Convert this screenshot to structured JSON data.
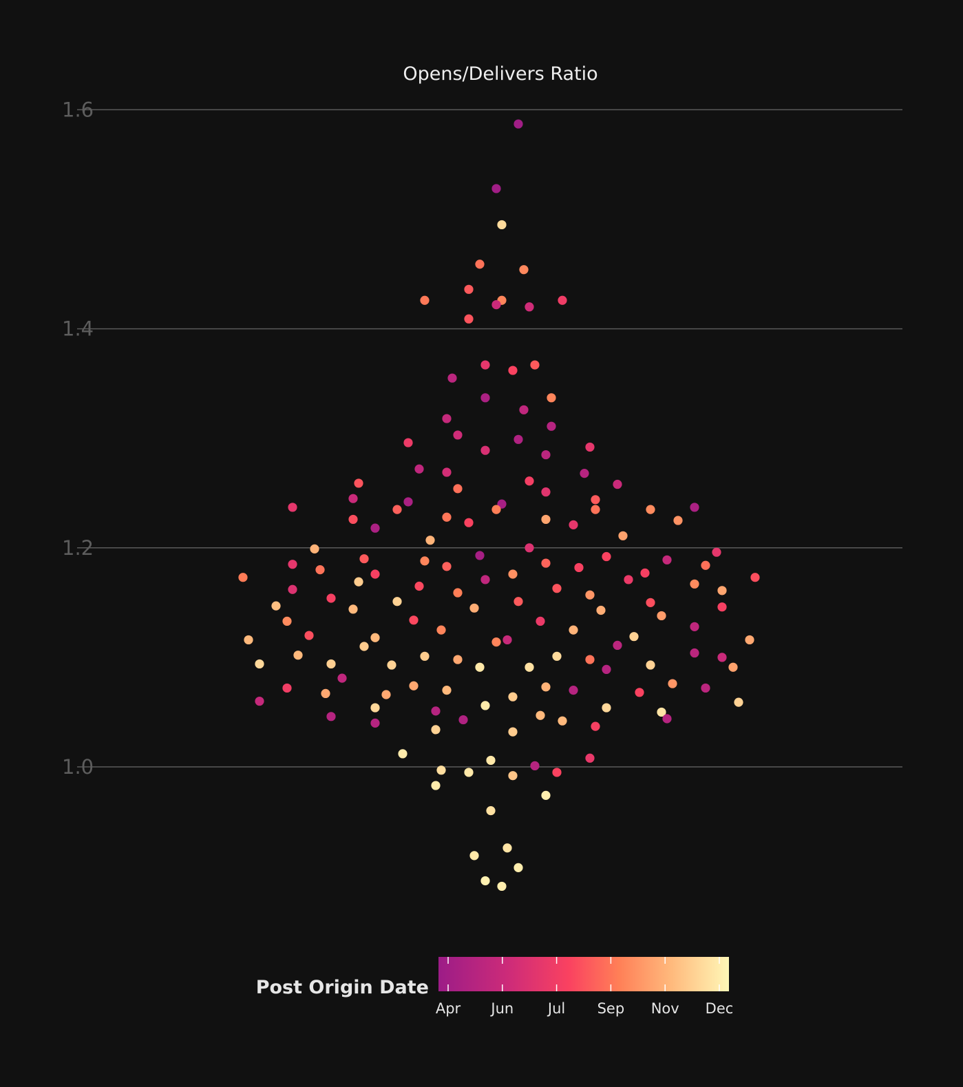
{
  "chart_data": {
    "type": "scatter",
    "title": "Opens/Delivers Ratio",
    "ylabel": "",
    "xlabel": "",
    "yticks": [
      1.0,
      1.2,
      1.4,
      1.6
    ],
    "ylim": [
      0.87,
      1.632
    ],
    "grid": true,
    "colorbar": {
      "title": "Post Origin Date",
      "ticks": [
        "Apr",
        "Jun",
        "Jul",
        "Sep",
        "Nov",
        "Dec"
      ],
      "colormap": [
        "#9c1c87",
        "#cf2c78",
        "#fa4260",
        "#ff7f57",
        "#ffb97c",
        "#fff7b7"
      ],
      "placement": "bottom-center"
    },
    "points": [
      {
        "y": 1.587,
        "c": 0.02,
        "s": 0.02
      },
      {
        "y": 1.528,
        "c": 0.02,
        "s": -0.02
      },
      {
        "y": 1.495,
        "c": 0.91,
        "s": -0.01
      },
      {
        "y": 1.459,
        "c": 0.56,
        "s": -0.05
      },
      {
        "y": 1.454,
        "c": 0.63,
        "s": 0.03
      },
      {
        "y": 1.436,
        "c": 0.48,
        "s": -0.07
      },
      {
        "y": 1.426,
        "c": 0.58,
        "s": -0.15
      },
      {
        "y": 1.426,
        "c": 0.62,
        "s": -0.01
      },
      {
        "y": 1.426,
        "c": 0.35,
        "s": 0.1
      },
      {
        "y": 1.422,
        "c": 0.18,
        "s": -0.02
      },
      {
        "y": 1.42,
        "c": 0.2,
        "s": 0.04
      },
      {
        "y": 1.409,
        "c": 0.46,
        "s": -0.07
      },
      {
        "y": 1.367,
        "c": 0.3,
        "s": -0.04
      },
      {
        "y": 1.367,
        "c": 0.48,
        "s": 0.05
      },
      {
        "y": 1.362,
        "c": 0.4,
        "s": 0.01
      },
      {
        "y": 1.355,
        "c": 0.12,
        "s": -0.1
      },
      {
        "y": 1.337,
        "c": 0.62,
        "s": 0.08
      },
      {
        "y": 1.337,
        "c": 0.06,
        "s": -0.04
      },
      {
        "y": 1.326,
        "c": 0.14,
        "s": 0.03
      },
      {
        "y": 1.318,
        "c": 0.16,
        "s": -0.11
      },
      {
        "y": 1.311,
        "c": 0.1,
        "s": 0.08
      },
      {
        "y": 1.303,
        "c": 0.2,
        "s": -0.09
      },
      {
        "y": 1.299,
        "c": 0.08,
        "s": 0.02
      },
      {
        "y": 1.296,
        "c": 0.34,
        "s": -0.18
      },
      {
        "y": 1.292,
        "c": 0.3,
        "s": 0.15
      },
      {
        "y": 1.289,
        "c": 0.24,
        "s": -0.04
      },
      {
        "y": 1.285,
        "c": 0.12,
        "s": 0.07
      },
      {
        "y": 1.272,
        "c": 0.14,
        "s": -0.16
      },
      {
        "y": 1.269,
        "c": 0.22,
        "s": -0.11
      },
      {
        "y": 1.268,
        "c": 0.1,
        "s": 0.14
      },
      {
        "y": 1.261,
        "c": 0.37,
        "s": 0.04
      },
      {
        "y": 1.259,
        "c": 0.46,
        "s": -0.27
      },
      {
        "y": 1.258,
        "c": 0.18,
        "s": 0.2
      },
      {
        "y": 1.254,
        "c": 0.55,
        "s": -0.09
      },
      {
        "y": 1.251,
        "c": 0.28,
        "s": 0.07
      },
      {
        "y": 1.245,
        "c": 0.18,
        "s": -0.28
      },
      {
        "y": 1.244,
        "c": 0.48,
        "s": 0.16
      },
      {
        "y": 1.242,
        "c": 0.06,
        "s": -0.18
      },
      {
        "y": 1.24,
        "c": 0.04,
        "s": -0.01
      },
      {
        "y": 1.237,
        "c": 0.3,
        "s": -0.39
      },
      {
        "y": 1.237,
        "c": 0.06,
        "s": 0.34
      },
      {
        "y": 1.235,
        "c": 0.5,
        "s": -0.2
      },
      {
        "y": 1.235,
        "c": 0.6,
        "s": -0.02
      },
      {
        "y": 1.235,
        "c": 0.56,
        "s": 0.16
      },
      {
        "y": 1.235,
        "c": 0.64,
        "s": 0.26
      },
      {
        "y": 1.228,
        "c": 0.57,
        "s": -0.11
      },
      {
        "y": 1.226,
        "c": 0.44,
        "s": -0.28
      },
      {
        "y": 1.226,
        "c": 0.73,
        "s": 0.07
      },
      {
        "y": 1.225,
        "c": 0.67,
        "s": 0.31
      },
      {
        "y": 1.223,
        "c": 0.4,
        "s": -0.07
      },
      {
        "y": 1.221,
        "c": 0.3,
        "s": 0.12
      },
      {
        "y": 1.218,
        "c": 0.06,
        "s": -0.24
      },
      {
        "y": 1.211,
        "c": 0.72,
        "s": 0.21
      },
      {
        "y": 1.207,
        "c": 0.78,
        "s": -0.14
      },
      {
        "y": 1.199,
        "c": 0.78,
        "s": -0.35
      },
      {
        "y": 1.2,
        "c": 0.26,
        "s": 0.04
      },
      {
        "y": 1.196,
        "c": 0.3,
        "s": 0.38
      },
      {
        "y": 1.193,
        "c": 0.04,
        "s": -0.05
      },
      {
        "y": 1.192,
        "c": 0.4,
        "s": 0.18
      },
      {
        "y": 1.19,
        "c": 0.48,
        "s": -0.26
      },
      {
        "y": 1.189,
        "c": 0.16,
        "s": 0.29
      },
      {
        "y": 1.188,
        "c": 0.62,
        "s": -0.15
      },
      {
        "y": 1.186,
        "c": 0.51,
        "s": 0.07
      },
      {
        "y": 1.185,
        "c": 0.3,
        "s": -0.39
      },
      {
        "y": 1.184,
        "c": 0.55,
        "s": 0.36
      },
      {
        "y": 1.183,
        "c": 0.5,
        "s": -0.11
      },
      {
        "y": 1.182,
        "c": 0.39,
        "s": 0.13
      },
      {
        "y": 1.18,
        "c": 0.56,
        "s": -0.34
      },
      {
        "y": 1.177,
        "c": 0.38,
        "s": 0.25
      },
      {
        "y": 1.176,
        "c": 0.38,
        "s": -0.24
      },
      {
        "y": 1.176,
        "c": 0.66,
        "s": 0.01
      },
      {
        "y": 1.173,
        "c": 0.59,
        "s": -0.48
      },
      {
        "y": 1.173,
        "c": 0.44,
        "s": 0.45
      },
      {
        "y": 1.171,
        "c": 0.14,
        "s": -0.04
      },
      {
        "y": 1.171,
        "c": 0.33,
        "s": 0.22
      },
      {
        "y": 1.169,
        "c": 0.86,
        "s": -0.27
      },
      {
        "y": 1.167,
        "c": 0.64,
        "s": 0.34
      },
      {
        "y": 1.165,
        "c": 0.42,
        "s": -0.16
      },
      {
        "y": 1.163,
        "c": 0.46,
        "s": 0.09
      },
      {
        "y": 1.162,
        "c": 0.26,
        "s": -0.39
      },
      {
        "y": 1.161,
        "c": 0.73,
        "s": 0.39
      },
      {
        "y": 1.159,
        "c": 0.6,
        "s": -0.09
      },
      {
        "y": 1.157,
        "c": 0.68,
        "s": 0.15
      },
      {
        "y": 1.154,
        "c": 0.38,
        "s": -0.32
      },
      {
        "y": 1.151,
        "c": 0.88,
        "s": -0.2
      },
      {
        "y": 1.151,
        "c": 0.48,
        "s": 0.02
      },
      {
        "y": 1.15,
        "c": 0.44,
        "s": 0.26
      },
      {
        "y": 1.147,
        "c": 0.82,
        "s": -0.42
      },
      {
        "y": 1.146,
        "c": 0.38,
        "s": 0.39
      },
      {
        "y": 1.145,
        "c": 0.76,
        "s": -0.06
      },
      {
        "y": 1.144,
        "c": 0.8,
        "s": -0.28
      },
      {
        "y": 1.143,
        "c": 0.76,
        "s": 0.17
      },
      {
        "y": 1.138,
        "c": 0.7,
        "s": 0.28
      },
      {
        "y": 1.134,
        "c": 0.42,
        "s": -0.17
      },
      {
        "y": 1.133,
        "c": 0.64,
        "s": -0.4
      },
      {
        "y": 1.133,
        "c": 0.33,
        "s": 0.06
      },
      {
        "y": 1.128,
        "c": 0.14,
        "s": 0.34
      },
      {
        "y": 1.125,
        "c": 0.62,
        "s": -0.12
      },
      {
        "y": 1.125,
        "c": 0.78,
        "s": 0.12
      },
      {
        "y": 1.12,
        "c": 0.44,
        "s": -0.36
      },
      {
        "y": 1.119,
        "c": 0.88,
        "s": 0.23
      },
      {
        "y": 1.118,
        "c": 0.8,
        "s": -0.24
      },
      {
        "y": 1.116,
        "c": 0.8,
        "s": -0.47
      },
      {
        "y": 1.116,
        "c": 0.17,
        "s": 0.0
      },
      {
        "y": 1.116,
        "c": 0.74,
        "s": 0.44
      },
      {
        "y": 1.114,
        "c": 0.62,
        "s": -0.02
      },
      {
        "y": 1.11,
        "c": 0.86,
        "s": -0.26
      },
      {
        "y": 1.111,
        "c": 0.12,
        "s": 0.2
      },
      {
        "y": 1.104,
        "c": 0.12,
        "s": 0.34
      },
      {
        "y": 1.102,
        "c": 0.8,
        "s": -0.38
      },
      {
        "y": 1.101,
        "c": 0.86,
        "s": -0.15
      },
      {
        "y": 1.101,
        "c": 0.91,
        "s": 0.09
      },
      {
        "y": 1.1,
        "c": 0.18,
        "s": 0.39
      },
      {
        "y": 1.098,
        "c": 0.74,
        "s": -0.09
      },
      {
        "y": 1.098,
        "c": 0.56,
        "s": 0.15
      },
      {
        "y": 1.094,
        "c": 0.9,
        "s": -0.45
      },
      {
        "y": 1.094,
        "c": 0.87,
        "s": -0.32
      },
      {
        "y": 1.093,
        "c": 0.88,
        "s": -0.21
      },
      {
        "y": 1.093,
        "c": 0.88,
        "s": 0.26
      },
      {
        "y": 1.091,
        "c": 0.72,
        "s": 0.41
      },
      {
        "y": 1.091,
        "c": 0.95,
        "s": -0.05
      },
      {
        "y": 1.091,
        "c": 0.93,
        "s": 0.04
      },
      {
        "y": 1.089,
        "c": 0.1,
        "s": 0.18
      },
      {
        "y": 1.081,
        "c": 0.14,
        "s": -0.3
      },
      {
        "y": 1.076,
        "c": 0.68,
        "s": 0.3
      },
      {
        "y": 1.074,
        "c": 0.74,
        "s": -0.17
      },
      {
        "y": 1.073,
        "c": 0.78,
        "s": 0.07
      },
      {
        "y": 1.072,
        "c": 0.36,
        "s": -0.4
      },
      {
        "y": 1.072,
        "c": 0.12,
        "s": 0.36
      },
      {
        "y": 1.07,
        "c": 0.8,
        "s": -0.11
      },
      {
        "y": 1.07,
        "c": 0.1,
        "s": 0.12
      },
      {
        "y": 1.068,
        "c": 0.4,
        "s": 0.24
      },
      {
        "y": 1.067,
        "c": 0.74,
        "s": -0.33
      },
      {
        "y": 1.066,
        "c": 0.74,
        "s": -0.22
      },
      {
        "y": 1.064,
        "c": 0.86,
        "s": 0.01
      },
      {
        "y": 1.06,
        "c": 0.16,
        "s": -0.45
      },
      {
        "y": 1.059,
        "c": 0.88,
        "s": 0.42
      },
      {
        "y": 1.056,
        "c": 0.96,
        "s": -0.04
      },
      {
        "y": 1.054,
        "c": 0.9,
        "s": -0.24
      },
      {
        "y": 1.054,
        "c": 0.9,
        "s": 0.18
      },
      {
        "y": 1.051,
        "c": 0.1,
        "s": -0.13
      },
      {
        "y": 1.05,
        "c": 0.94,
        "s": 0.28
      },
      {
        "y": 1.047,
        "c": 0.8,
        "s": 0.06
      },
      {
        "y": 1.046,
        "c": 0.1,
        "s": -0.32
      },
      {
        "y": 1.044,
        "c": 0.1,
        "s": 0.29
      },
      {
        "y": 1.043,
        "c": 0.08,
        "s": -0.08
      },
      {
        "y": 1.042,
        "c": 0.8,
        "s": 0.1
      },
      {
        "y": 1.04,
        "c": 0.1,
        "s": -0.24
      },
      {
        "y": 1.037,
        "c": 0.38,
        "s": 0.16
      },
      {
        "y": 1.034,
        "c": 0.88,
        "s": -0.13
      },
      {
        "y": 1.032,
        "c": 0.86,
        "s": 0.01
      },
      {
        "y": 1.012,
        "c": 0.96,
        "s": -0.19
      },
      {
        "y": 1.008,
        "c": 0.32,
        "s": 0.15
      },
      {
        "y": 1.006,
        "c": 0.95,
        "s": -0.03
      },
      {
        "y": 1.001,
        "c": 0.1,
        "s": 0.05
      },
      {
        "y": 0.997,
        "c": 0.92,
        "s": -0.12
      },
      {
        "y": 0.995,
        "c": 0.4,
        "s": 0.09
      },
      {
        "y": 0.995,
        "c": 0.95,
        "s": -0.07
      },
      {
        "y": 0.992,
        "c": 0.84,
        "s": 0.01
      },
      {
        "y": 0.983,
        "c": 0.96,
        "s": -0.13
      },
      {
        "y": 0.974,
        "c": 0.97,
        "s": 0.07
      },
      {
        "y": 0.96,
        "c": 0.93,
        "s": -0.03
      },
      {
        "y": 0.926,
        "c": 0.94,
        "s": 0.0
      },
      {
        "y": 0.919,
        "c": 0.95,
        "s": -0.06
      },
      {
        "y": 0.908,
        "c": 0.97,
        "s": 0.02
      },
      {
        "y": 0.896,
        "c": 0.98,
        "s": -0.04
      },
      {
        "y": 0.891,
        "c": 0.97,
        "s": -0.01
      }
    ]
  }
}
